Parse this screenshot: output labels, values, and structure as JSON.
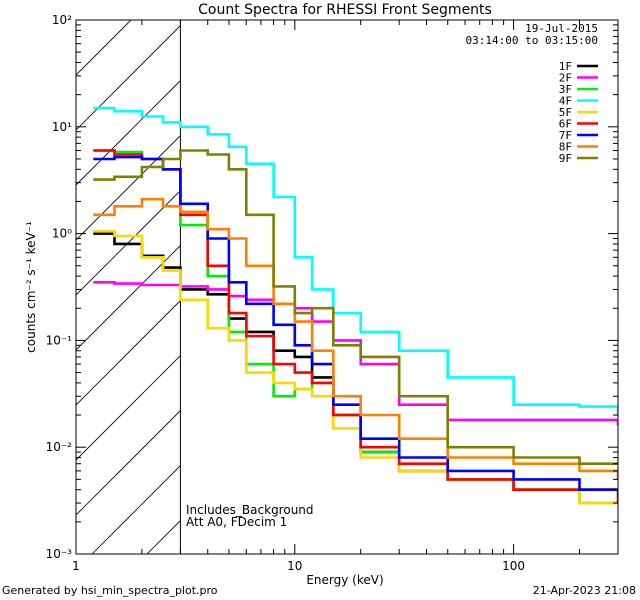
{
  "chart_data": {
    "type": "line",
    "title": "Count Spectra for RHESSI Front Segments",
    "xlabel": "Energy (keV)",
    "ylabel": "counts cm⁻² s⁻¹ keV⁻¹",
    "xscale": "log",
    "yscale": "log",
    "xlim": [
      1,
      300
    ],
    "ylim": [
      0.001,
      100
    ],
    "x_ticks": [
      {
        "value": 1,
        "label": "1"
      },
      {
        "value": 10,
        "label": "10"
      },
      {
        "value": 100,
        "label": "100"
      }
    ],
    "y_ticks": [
      {
        "value": 0.001,
        "label": "10⁻³"
      },
      {
        "value": 0.01,
        "label": "10⁻²"
      },
      {
        "value": 0.1,
        "label": "10⁻¹"
      },
      {
        "value": 1,
        "label": "10⁰"
      },
      {
        "value": 10,
        "label": "10¹"
      },
      {
        "value": 100,
        "label": "10²"
      }
    ],
    "hatched_region_keV": [
      1,
      3
    ],
    "date": "19-Jul-2015",
    "time_range": "03:14:00 to 03:15:00",
    "annotations": [
      "Includes_Background",
      "Att A0, FDecim 1"
    ],
    "energy_keV": [
      1.2,
      1.5,
      2,
      2.5,
      3,
      4,
      5,
      6,
      8,
      10,
      12,
      15,
      20,
      30,
      50,
      100,
      200,
      300
    ],
    "series": [
      {
        "name": "1F",
        "color": "#000000",
        "values": [
          1.0,
          0.8,
          0.62,
          0.48,
          0.3,
          0.27,
          0.16,
          0.12,
          0.08,
          0.07,
          0.045,
          0.02,
          0.009,
          0.006,
          0.005,
          0.004,
          0.004,
          0.004
        ]
      },
      {
        "name": "2F",
        "color": "#ff00ff",
        "values": [
          0.35,
          0.34,
          0.33,
          0.33,
          0.32,
          0.3,
          0.26,
          0.24,
          0.22,
          0.2,
          0.15,
          0.1,
          0.06,
          0.025,
          0.018,
          0.018,
          0.018,
          0.016
        ]
      },
      {
        "name": "3F",
        "color": "#00ee00",
        "values": [
          6.0,
          5.8,
          5.0,
          4.0,
          1.2,
          0.4,
          0.12,
          0.06,
          0.03,
          0.035,
          0.04,
          0.02,
          0.009,
          0.006,
          0.005,
          0.004,
          0.003,
          0.003
        ]
      },
      {
        "name": "4F",
        "color": "#00ffff",
        "values": [
          15,
          14,
          12.5,
          11,
          10,
          8.5,
          6.5,
          4.5,
          2.2,
          0.6,
          0.3,
          0.18,
          0.12,
          0.08,
          0.045,
          0.025,
          0.024,
          0.02
        ]
      },
      {
        "name": "5F",
        "color": "#ffd700",
        "values": [
          1.05,
          0.95,
          0.6,
          0.45,
          0.24,
          0.13,
          0.1,
          0.05,
          0.04,
          0.035,
          0.03,
          0.015,
          0.008,
          0.006,
          0.005,
          0.004,
          0.003,
          0.003
        ]
      },
      {
        "name": "6F",
        "color": "#ff0000",
        "values": [
          6.0,
          5.5,
          5.0,
          4.0,
          1.5,
          0.5,
          0.18,
          0.11,
          0.06,
          0.05,
          0.04,
          0.02,
          0.01,
          0.007,
          0.005,
          0.004,
          0.004,
          0.003
        ]
      },
      {
        "name": "7F",
        "color": "#0000ff",
        "values": [
          5.0,
          5.2,
          5.0,
          4.0,
          1.9,
          0.9,
          0.35,
          0.22,
          0.14,
          0.09,
          0.06,
          0.025,
          0.012,
          0.008,
          0.006,
          0.005,
          0.004,
          0.004
        ]
      },
      {
        "name": "8F",
        "color": "#ff8000",
        "values": [
          1.5,
          1.8,
          2.1,
          1.8,
          1.6,
          1.1,
          0.9,
          0.5,
          0.22,
          0.15,
          0.08,
          0.03,
          0.02,
          0.012,
          0.008,
          0.007,
          0.006,
          0.005
        ]
      },
      {
        "name": "9F",
        "color": "#808000",
        "values": [
          3.2,
          3.4,
          4.2,
          5.0,
          6.0,
          5.5,
          4.0,
          1.5,
          0.32,
          0.18,
          0.2,
          0.09,
          0.07,
          0.03,
          0.01,
          0.008,
          0.007,
          0.007
        ]
      }
    ]
  },
  "footer": {
    "generated_by": "Generated by hsi_min_spectra_plot.pro",
    "plot_timestamp": "21-Apr-2023 21:08"
  }
}
